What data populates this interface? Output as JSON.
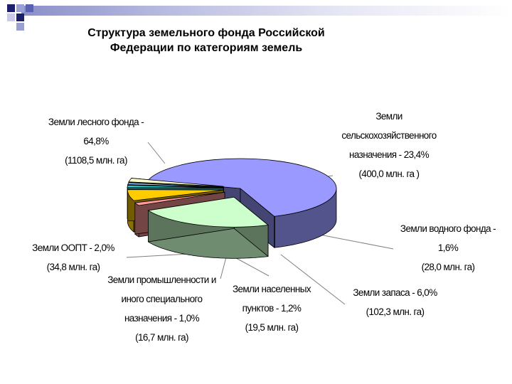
{
  "slide": {
    "title_line1": "Структура земельного фонда Российской",
    "title_line2": "Федерации по категориям земель",
    "decor_colors": [
      "#1a1f6e",
      "#5a62b0",
      "#9aa0d4",
      "#c8cae8"
    ]
  },
  "chart_data": {
    "type": "pie",
    "three_d": true,
    "unit": "млн. га",
    "slices": [
      {
        "name": "Земли лесного фонда",
        "percent": 64.8,
        "area": 1108.5,
        "color": "#9999ff",
        "exploded": false,
        "label": [
          "Земли лесного фонда -",
          "64,8%",
          "(1108,5 млн. га)"
        ]
      },
      {
        "name": "Земли сельскохозяйственного назначения",
        "percent": 23.4,
        "area": 400.0,
        "color": "#ccffcc",
        "exploded": true,
        "label": [
          "Земли",
          "сельскохозяйственного",
          "назначения - 23,4%",
          "(400,0 млн. га )"
        ]
      },
      {
        "name": "Земли водного фонда",
        "percent": 1.6,
        "area": 28.0,
        "color": "#ff9999",
        "exploded": true,
        "label": [
          "Земли водного фонда -",
          "1,6%",
          "(28,0 млн. га)"
        ]
      },
      {
        "name": "Земли запаса",
        "percent": 6.0,
        "area": 102.3,
        "color": "#ffcc00",
        "exploded": true,
        "label": [
          "Земли запаса - 6,0%",
          "(102,3 млн. га)"
        ]
      },
      {
        "name": "Земли населенных пунктов",
        "percent": 1.2,
        "area": 19.5,
        "color": "#33cccc",
        "exploded": true,
        "label": [
          "Земли населенных",
          "пунктов - 1,2%",
          "(19,5 млн. га)"
        ]
      },
      {
        "name": "Земли промышленности и иного специального назначения",
        "percent": 1.0,
        "area": 16.7,
        "color": "#99ccff",
        "exploded": true,
        "label": [
          "Земли промышленности и",
          "иного специального",
          "назначения - 1,0%",
          "(16,7 млн. га)"
        ]
      },
      {
        "name": "Земли ООПТ",
        "percent": 2.0,
        "area": 34.8,
        "color": "#ffffcc",
        "exploded": true,
        "label": [
          "Земли  ООПТ - 2,0%",
          "(34,8 млн. га)"
        ]
      }
    ]
  }
}
